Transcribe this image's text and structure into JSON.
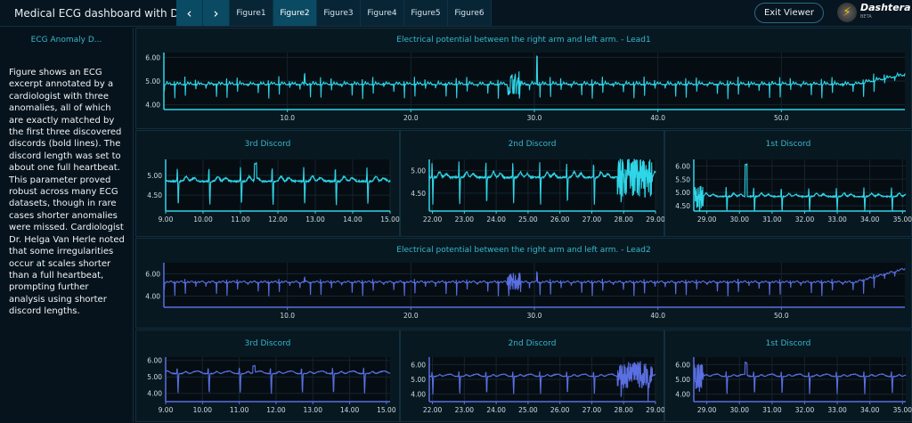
{
  "header": {
    "title": "Medical ECG dashboard with Dasht...",
    "prev_icon": "chevron-left-icon",
    "next_icon": "chevron-right-icon",
    "tabs": [
      {
        "label": "Figure1"
      },
      {
        "label": "Figure2",
        "active": true
      },
      {
        "label": "Figure3"
      },
      {
        "label": "Figure4"
      },
      {
        "label": "Figure5"
      },
      {
        "label": "Figure6"
      }
    ],
    "exit_label": "Exit Viewer",
    "logo": {
      "name": "Dashtera",
      "sub": "BETA"
    }
  },
  "sidebar": {
    "title": "ECG Anomaly D...",
    "text": "Figure shows an ECG excerpt annotated by a cardiologist with three anomalies, all of which are exactly matched by the first three discovered discords (bold lines). The discord length was set to about one full heartbeat. This parameter proved robust across many ECG datasets, though in rare cases shorter anomalies were missed. Cardiologist Dr. Helga Van Herle noted that some irregularities occur at scales shorter than a full heartbeat, prompting further analysis using shorter discord lengths."
  },
  "colors": {
    "lead1": "#2fd6e8",
    "lead2": "#5a6fe2",
    "title": "#35b8cc",
    "background": "#07121b"
  },
  "chart_data": [
    {
      "id": "lead1",
      "type": "line",
      "title": "Electrical potential between the right arm and left arm. - Lead1",
      "xlim": [
        0,
        60
      ],
      "ylim": [
        3.8,
        6.2
      ],
      "xticks": [
        "10.0",
        "20.0",
        "30.0",
        "40.0",
        "50.0"
      ],
      "yticks": [
        "4.00",
        "5.00",
        "6.00"
      ],
      "lead": 1,
      "grid": true
    },
    {
      "id": "l1d3",
      "type": "line",
      "title": "3rd Discord",
      "xlim": [
        9,
        15
      ],
      "ylim": [
        4.1,
        5.4
      ],
      "xticks": [
        "9.00",
        "10.00",
        "11.00",
        "12.00",
        "13.00",
        "14.00",
        "15.00"
      ],
      "yticks": [
        "4.50",
        "5.00"
      ],
      "lead": 1,
      "grid": true
    },
    {
      "id": "l1d2",
      "type": "line",
      "title": "2nd Discord",
      "xlim": [
        21.9,
        29
      ],
      "ylim": [
        4.1,
        5.25
      ],
      "xticks": [
        "22.00",
        "23.00",
        "24.00",
        "25.00",
        "26.00",
        "27.00",
        "28.00",
        "29.00"
      ],
      "yticks": [
        "4.50",
        "5.00"
      ],
      "lead": 1,
      "grid": true
    },
    {
      "id": "l1d1",
      "type": "line",
      "title": "1st Discord",
      "xlim": [
        28.6,
        35.1
      ],
      "ylim": [
        4.3,
        6.25
      ],
      "xticks": [
        "29.00",
        "30.00",
        "31.00",
        "32.00",
        "33.00",
        "34.00",
        "35.00"
      ],
      "yticks": [
        "4.50",
        "5.00",
        "5.50",
        "6.00"
      ],
      "lead": 1,
      "grid": true
    },
    {
      "id": "lead2",
      "type": "line",
      "title": "Electrical potential between the right arm and left arm. - Lead2",
      "xlim": [
        0,
        60
      ],
      "ylim": [
        3,
        7
      ],
      "xticks": [
        "10.0",
        "20.0",
        "30.0",
        "40.0",
        "50.0"
      ],
      "yticks": [
        "4.00",
        "6.00"
      ],
      "lead": 2,
      "grid": true
    },
    {
      "id": "l2d3",
      "type": "line",
      "title": "3rd Discord",
      "xlim": [
        9,
        15.1
      ],
      "ylim": [
        3.5,
        6.2
      ],
      "xticks": [
        "9.00",
        "10.00",
        "11.00",
        "12.00",
        "13.00",
        "14.00",
        "15.00"
      ],
      "yticks": [
        "4.00",
        "5.00",
        "6.00"
      ],
      "lead": 2,
      "grid": true
    },
    {
      "id": "l2d2",
      "type": "line",
      "title": "2nd Discord",
      "xlim": [
        21.9,
        29
      ],
      "ylim": [
        3.5,
        6.5
      ],
      "xticks": [
        "22.00",
        "23.00",
        "24.00",
        "25.00",
        "26.00",
        "27.00",
        "28.00",
        "29.00"
      ],
      "yticks": [
        "4.00",
        "5.00",
        "6.00"
      ],
      "lead": 2,
      "grid": true
    },
    {
      "id": "l2d1",
      "type": "line",
      "title": "1st Discord",
      "xlim": [
        28.6,
        35.1
      ],
      "ylim": [
        3.5,
        6.5
      ],
      "xticks": [
        "29.00",
        "30.00",
        "31.00",
        "32.00",
        "33.00",
        "34.00",
        "35.00"
      ],
      "yticks": [
        "4.00",
        "5.00",
        "6.00"
      ],
      "lead": 2,
      "grid": true
    }
  ]
}
